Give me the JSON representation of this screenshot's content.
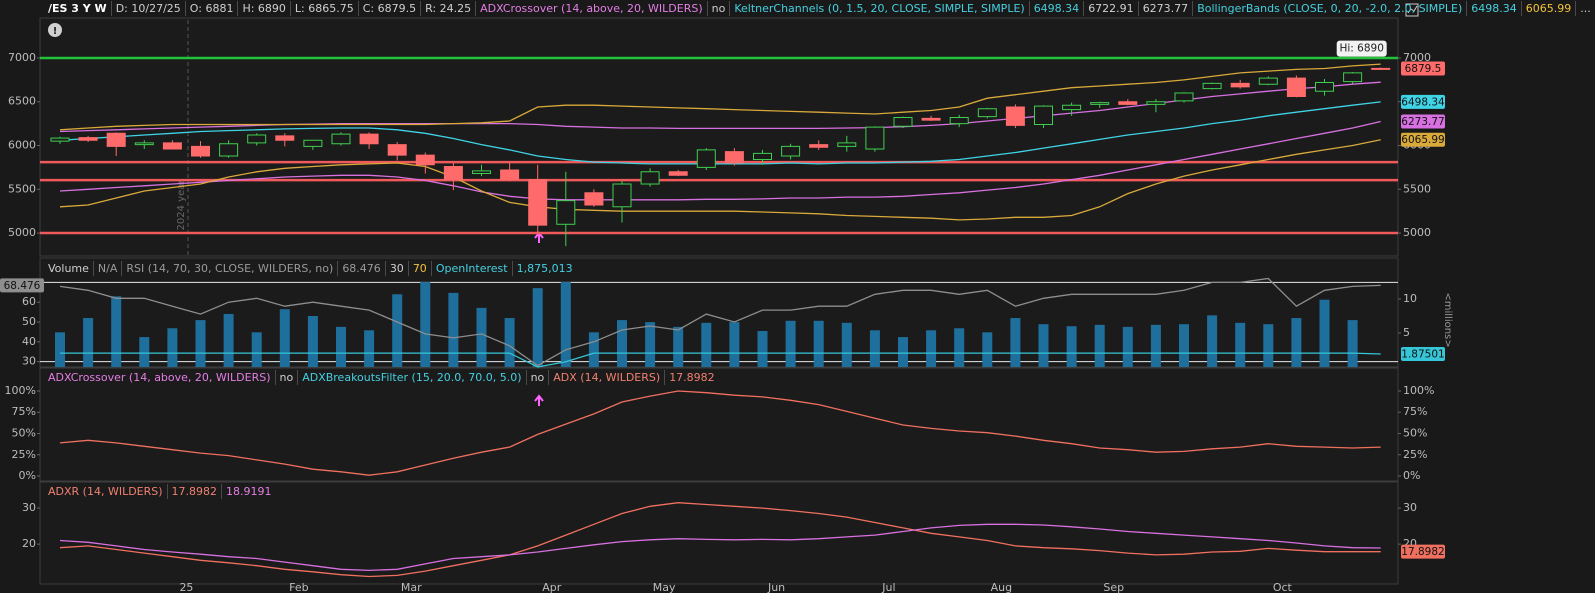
{
  "chart_data": [
    {
      "type": "candlestick",
      "header": [
        "/ES 3 Y W",
        "D: 10/27/25",
        "O: 6881",
        "H: 6890",
        "L: 6865.75",
        "C: 6879.5",
        "R: 24.25",
        "ADXCrossover (14, above, 20, WILDERS)",
        "no",
        "KeltnerChannels (0, 1.5, 20, CLOSE, SIMPLE, SIMPLE)",
        "BollingerBands (CLOSE, 0, 20, -2.0, 2.0, SIMPLE)",
        "..."
      ],
      "annotation": "2024 year",
      "hi_label": "Hi: 6890",
      "up_color": "#3fcf4f",
      "down_color": "#ff6b6b",
      "last_close_label": true,
      "ylim": [
        4749,
        7434
      ],
      "yticks": [
        5000,
        5500,
        6000,
        6500,
        7000
      ],
      "open": [
        6050,
        6090,
        6140,
        6010,
        6030,
        5990,
        5880,
        6030,
        6110,
        5990,
        6020,
        6130,
        6010,
        5890,
        5760,
        5680,
        5720,
        5610,
        5100,
        5460,
        5300,
        5560,
        5700,
        5750,
        5930,
        5840,
        5880,
        6010,
        5990,
        5960,
        6220,
        6310,
        6250,
        6330,
        6440,
        6240,
        6410,
        6470,
        6500,
        6470,
        6510,
        6650,
        6710,
        6700,
        6770,
        6620,
        6730,
        6881
      ],
      "high": [
        6100,
        6110,
        6150,
        6060,
        6060,
        6050,
        6060,
        6140,
        6140,
        6060,
        6150,
        6150,
        6040,
        5920,
        5800,
        5780,
        5800,
        5780,
        5700,
        5500,
        5600,
        5740,
        5720,
        5970,
        5970,
        5950,
        6020,
        6060,
        6110,
        6220,
        6330,
        6340,
        6350,
        6430,
        6470,
        6460,
        6490,
        6500,
        6530,
        6530,
        6610,
        6720,
        6750,
        6790,
        6800,
        6760,
        6840,
        6890
      ],
      "low": [
        6020,
        6040,
        5880,
        5960,
        5980,
        5860,
        5860,
        6000,
        5990,
        5950,
        6000,
        5960,
        5830,
        5680,
        5490,
        5650,
        5590,
        5000,
        4850,
        5300,
        5120,
        5530,
        5650,
        5720,
        5770,
        5780,
        5840,
        5950,
        5930,
        5930,
        6200,
        6280,
        6210,
        6310,
        6200,
        6200,
        6340,
        6430,
        6460,
        6380,
        6490,
        6640,
        6650,
        6690,
        6550,
        6570,
        6700,
        6865.75
      ],
      "close": [
        6085,
        6060,
        5990,
        6030,
        5960,
        5880,
        6020,
        6120,
        6060,
        6060,
        6130,
        6020,
        5890,
        5780,
        5610,
        5710,
        5610,
        5090,
        5370,
        5320,
        5560,
        5700,
        5660,
        5950,
        5800,
        5910,
        5990,
        5980,
        6030,
        6210,
        6320,
        6290,
        6320,
        6420,
        6230,
        6450,
        6460,
        6490,
        6470,
        6500,
        6600,
        6710,
        6670,
        6770,
        6560,
        6720,
        6830,
        6879.5
      ],
      "series": [
        {
          "color": "#3fd3e6",
          "last_label": "right",
          "values": [
            6060,
            6080,
            6100,
            6120,
            6140,
            6160,
            6170,
            6180,
            6190,
            6195,
            6200,
            6200,
            6180,
            6140,
            6080,
            6010,
            5950,
            5880,
            5840,
            5810,
            5800,
            5790,
            5790,
            5790,
            5790,
            5790,
            5800,
            5790,
            5800,
            5800,
            5810,
            5820,
            5840,
            5880,
            5920,
            5970,
            6020,
            6070,
            6120,
            6160,
            6200,
            6250,
            6290,
            6340,
            6380,
            6420,
            6460,
            6498.34
          ]
        },
        {
          "color": "#d770e0",
          "values": [
            6160,
            6170,
            6180,
            6190,
            6200,
            6210,
            6220,
            6230,
            6240,
            6245,
            6250,
            6250,
            6250,
            6250,
            6250,
            6250,
            6250,
            6240,
            6220,
            6210,
            6200,
            6200,
            6195,
            6195,
            6195,
            6195,
            6195,
            6195,
            6200,
            6205,
            6215,
            6230,
            6250,
            6280,
            6310,
            6340,
            6370,
            6400,
            6440,
            6480,
            6520,
            6560,
            6590,
            6620,
            6650,
            6670,
            6700,
            6722.91
          ]
        },
        {
          "color": "#d770e0",
          "last_label": "right",
          "values": [
            5480,
            5500,
            5520,
            5540,
            5560,
            5580,
            5600,
            5620,
            5640,
            5650,
            5660,
            5660,
            5640,
            5600,
            5540,
            5470,
            5420,
            5390,
            5380,
            5380,
            5380,
            5380,
            5380,
            5385,
            5385,
            5390,
            5400,
            5400,
            5410,
            5410,
            5420,
            5440,
            5460,
            5490,
            5520,
            5560,
            5610,
            5660,
            5720,
            5780,
            5840,
            5900,
            5960,
            6020,
            6080,
            6140,
            6200,
            6273.77
          ]
        },
        {
          "color": "#d9a93a",
          "values": [
            6180,
            6200,
            6220,
            6230,
            6240,
            6240,
            6240,
            6240,
            6240,
            6240,
            6240,
            6240,
            6240,
            6240,
            6250,
            6260,
            6280,
            6440,
            6460,
            6460,
            6450,
            6440,
            6430,
            6420,
            6410,
            6400,
            6390,
            6380,
            6370,
            6360,
            6380,
            6400,
            6440,
            6540,
            6580,
            6620,
            6660,
            6680,
            6700,
            6720,
            6750,
            6790,
            6830,
            6850,
            6870,
            6880,
            6910,
            6930
          ]
        },
        {
          "color": "#d9a93a",
          "last_label": "right",
          "values": [
            5300,
            5320,
            5400,
            5480,
            5520,
            5560,
            5640,
            5700,
            5740,
            5760,
            5780,
            5790,
            5800,
            5760,
            5640,
            5480,
            5350,
            5300,
            5270,
            5260,
            5250,
            5250,
            5250,
            5250,
            5250,
            5240,
            5230,
            5220,
            5200,
            5190,
            5180,
            5170,
            5150,
            5160,
            5180,
            5180,
            5200,
            5300,
            5450,
            5560,
            5650,
            5720,
            5780,
            5840,
            5900,
            5950,
            6000,
            6065.99
          ]
        }
      ],
      "levels": [
        {
          "value": 7000,
          "color": "#22c33a"
        },
        {
          "value": 5810,
          "color": "#f05a5a"
        },
        {
          "value": 5605,
          "color": "#f05a5a"
        },
        {
          "value": 5000,
          "color": "#f05a5a"
        }
      ]
    },
    {
      "type": "bar",
      "header": [
        "Volume",
        "N/A",
        "RSI (14, 70, 30, CLOSE, WILDERS, no)",
        "OpenInterest",
        "1,875,013"
      ],
      "y2label": "<millions>",
      "ylim": [
        27.3,
        79.8
      ],
      "yticks": [
        30,
        40,
        50,
        60
      ],
      "y2lim": [
        0,
        15.3
      ],
      "y2ticks": [
        5,
        10
      ],
      "y3lim": [
        1.8,
        2.4
      ],
      "levels": [
        30,
        70
      ],
      "series": [
        {
          "type": "bar",
          "axis": "y2",
          "color": "#1f6f9c",
          "values": [
            5.1,
            7.2,
            10.4,
            4.4,
            5.7,
            6.9,
            7.8,
            5.1,
            8.5,
            7.5,
            5.9,
            5.4,
            10.7,
            12.5,
            10.9,
            8.7,
            7.2,
            11.6,
            12.5,
            5.1,
            6.9,
            6.6,
            5.9,
            6.5,
            6.6,
            5.3,
            6.8,
            6.8,
            6.5,
            5.4,
            4.4,
            5.4,
            5.7,
            5.1,
            7.2,
            6.3,
            6.0,
            6.2,
            5.9,
            6.2,
            6.3,
            7.6,
            6.5,
            6.3,
            7.2,
            9.9,
            6.9,
            null
          ]
        },
        {
          "type": "line",
          "color": "#8e8e8e",
          "last_label": "left",
          "values": [
            68,
            66,
            62,
            62,
            58,
            54,
            60,
            62,
            58,
            60,
            58,
            56,
            50,
            44,
            42,
            44,
            38,
            28,
            36,
            40,
            46,
            48,
            46,
            54,
            50,
            56,
            56,
            58,
            58,
            64,
            66,
            66,
            64,
            66,
            58,
            62,
            64,
            64,
            64,
            64,
            66,
            70,
            70,
            72,
            58,
            66,
            68,
            68.476
          ]
        },
        {
          "type": "line",
          "axis": "y3",
          "color": "#35c6d8",
          "last_label": "right",
          "values": [
            1.88,
            1.88,
            1.88,
            1.88,
            1.88,
            1.88,
            1.88,
            1.88,
            1.88,
            1.88,
            1.88,
            1.88,
            1.88,
            1.88,
            1.88,
            1.88,
            1.88,
            1.8,
            1.83,
            1.88,
            1.88,
            1.88,
            1.88,
            1.88,
            1.88,
            1.88,
            1.88,
            1.88,
            1.88,
            1.88,
            1.88,
            1.88,
            1.88,
            1.88,
            1.88,
            1.88,
            1.88,
            1.88,
            1.88,
            1.88,
            1.88,
            1.88,
            1.88,
            1.88,
            1.88,
            1.88,
            1.88,
            1.87501
          ]
        }
      ]
    },
    {
      "type": "line",
      "header": [
        "ADXCrossover (14, above, 20, WILDERS)",
        "no",
        "ADXBreakoutsFilter (15, 20.0, 70.0, 5.0)",
        "no",
        "ADX (14, WILDERS)",
        "17.8982"
      ],
      "ylim": [
        -4.7,
        124.7
      ],
      "yticks": [
        {
          "value": 0,
          "label": "0%"
        },
        {
          "value": 25,
          "label": "25%"
        },
        {
          "value": 50,
          "label": "50%"
        },
        {
          "value": 75,
          "label": "75%"
        },
        {
          "value": 100,
          "label": "100%"
        }
      ],
      "series": [
        {
          "color": "#f07060",
          "values": [
            39,
            42,
            39,
            35,
            31,
            27,
            24,
            19,
            14,
            8,
            5,
            1,
            5,
            13,
            21,
            28,
            34,
            49,
            61,
            73,
            87,
            94,
            100,
            98,
            95,
            93,
            89,
            84,
            76,
            68,
            60,
            56,
            53,
            51,
            47,
            42,
            38,
            33,
            31,
            28,
            29,
            32,
            34,
            38,
            35,
            34,
            33,
            34
          ]
        }
      ]
    },
    {
      "type": "line",
      "header": [
        "ADXR (14, WILDERS)"
      ],
      "categories": [
        null,
        null,
        null,
        null,
        "25",
        null,
        null,
        null,
        "Feb",
        null,
        null,
        null,
        "Mar",
        null,
        null,
        null,
        null,
        "Apr",
        null,
        null,
        null,
        "May",
        null,
        null,
        null,
        "Jun",
        null,
        null,
        null,
        "Jul",
        null,
        null,
        null,
        "Aug",
        null,
        null,
        null,
        "Sep",
        null,
        null,
        null,
        null,
        null,
        "Oct",
        null,
        null,
        null,
        null
      ],
      "ylim": [
        9.2,
        36.7
      ],
      "yticks": [
        20,
        30
      ],
      "series": [
        {
          "color": "#f07060",
          "last_label": "right",
          "values": [
            19,
            19.5,
            18.5,
            17.5,
            16.5,
            15.5,
            14.8,
            14,
            13,
            12.3,
            11.5,
            11,
            11.3,
            12.5,
            14,
            15.5,
            17,
            19.5,
            22.5,
            25.5,
            28.5,
            30.5,
            31.5,
            31,
            30.5,
            30,
            29.3,
            28.5,
            27.5,
            26,
            24.5,
            23,
            22,
            21,
            19.5,
            19,
            18.7,
            18.2,
            17.5,
            17,
            17.2,
            17.8,
            18,
            18.8,
            18.3,
            17.9,
            17.9,
            17.8982
          ]
        },
        {
          "color": "#d770e0",
          "values": [
            21,
            20.5,
            19.5,
            18.5,
            17.8,
            17.2,
            16.5,
            16,
            15,
            14,
            13,
            12.7,
            13,
            14.5,
            16,
            16.5,
            17,
            17.8,
            18.8,
            19.8,
            20.7,
            21.2,
            21.5,
            21.3,
            21.2,
            21.3,
            21.2,
            21.5,
            22,
            22.5,
            23.5,
            24.5,
            25.2,
            25.5,
            25.5,
            25.3,
            24.8,
            24.2,
            23.5,
            23,
            22.5,
            22,
            21.5,
            21,
            20.3,
            19.5,
            19,
            18.9191
          ]
        }
      ]
    }
  ]
}
